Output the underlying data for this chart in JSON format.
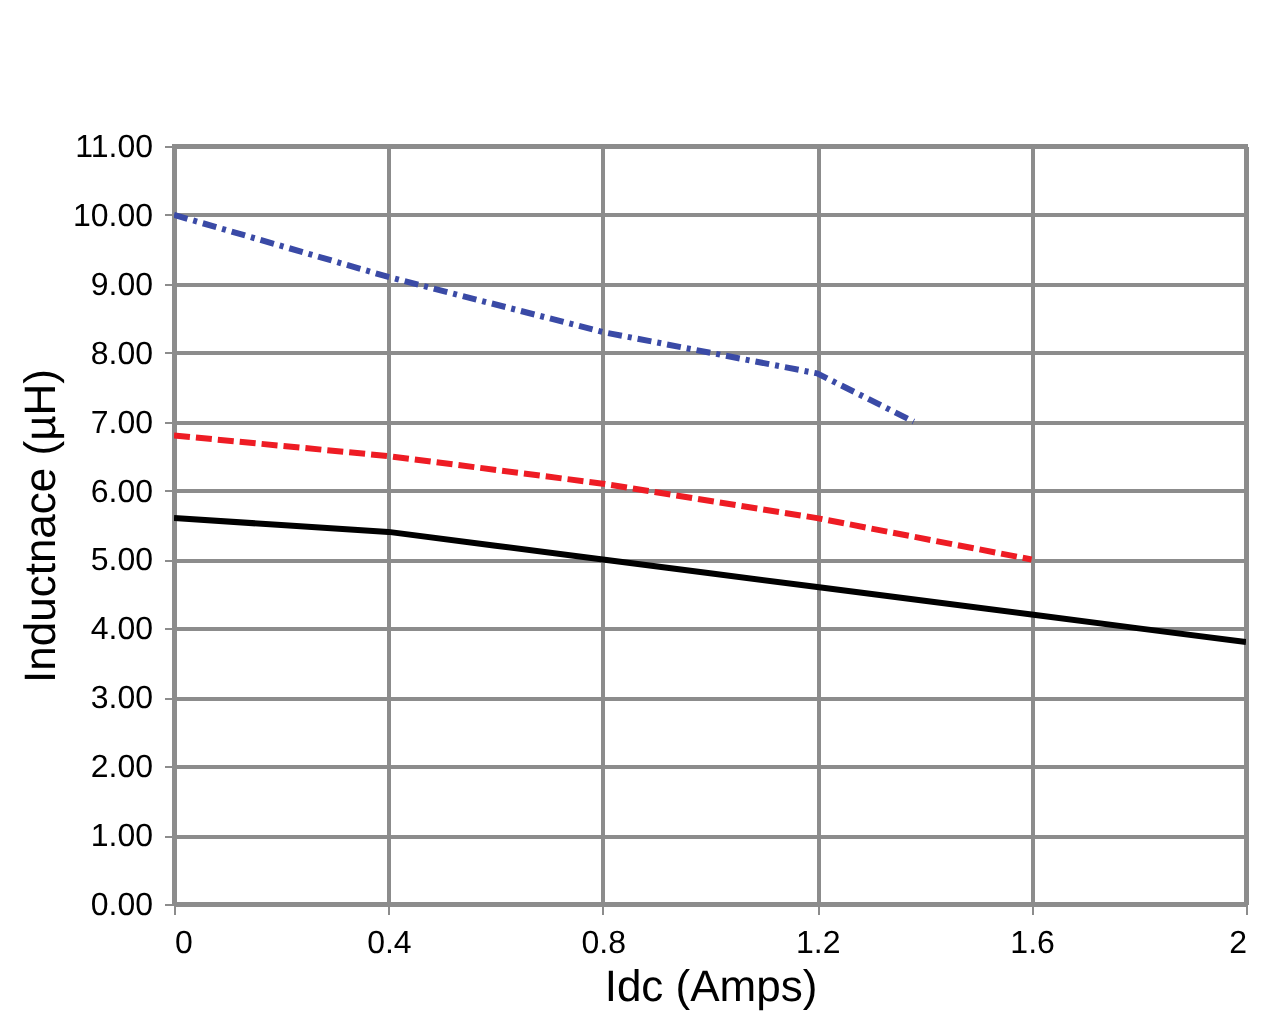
{
  "chart_data": {
    "type": "line",
    "xlabel": "Idc (Amps)",
    "ylabel": "Inductnace (µH)",
    "xlim": [
      0,
      2
    ],
    "xticks": [
      0,
      0.4,
      0.8,
      1.2,
      1.6,
      2
    ],
    "ylim": [
      0,
      11
    ],
    "yticks": [
      {
        "value": 0,
        "label": "0.00"
      },
      {
        "value": 1,
        "label": "1.00"
      },
      {
        "value": 2,
        "label": "2.00"
      },
      {
        "value": 3,
        "label": "3.00"
      },
      {
        "value": 4,
        "label": "4.00"
      },
      {
        "value": 5,
        "label": "5.00"
      },
      {
        "value": 6,
        "label": "6.00"
      },
      {
        "value": 7,
        "label": "7.00"
      },
      {
        "value": 8,
        "label": "8.00"
      },
      {
        "value": 9,
        "label": "9.00"
      },
      {
        "value": 10,
        "label": "10.00"
      },
      {
        "value": 11,
        "label": "11.00"
      }
    ],
    "grid": true,
    "marker": "none",
    "series": [
      {
        "color": "#000000",
        "line_style": "solid",
        "x": [
          0,
          0.2,
          0.4,
          0.6,
          0.8,
          1.0,
          1.2,
          1.4,
          1.6,
          1.8,
          2.0
        ],
        "values": [
          5.6,
          5.5,
          5.4,
          5.2,
          5.0,
          4.8,
          4.6,
          4.4,
          4.2,
          4.0,
          3.8
        ]
      },
      {
        "color": "#ee1c24",
        "line_style": "dashed",
        "x": [
          0,
          0.4,
          0.8,
          1.2,
          1.6
        ],
        "values": [
          6.8,
          6.5,
          6.1,
          5.6,
          5.0
        ]
      },
      {
        "color": "#3a4aa6",
        "line_style": "dashdot",
        "x": [
          0,
          0.4,
          0.8,
          1.2,
          1.38
        ],
        "values": [
          10.0,
          9.1,
          8.3,
          7.7,
          7.0
        ]
      }
    ]
  }
}
